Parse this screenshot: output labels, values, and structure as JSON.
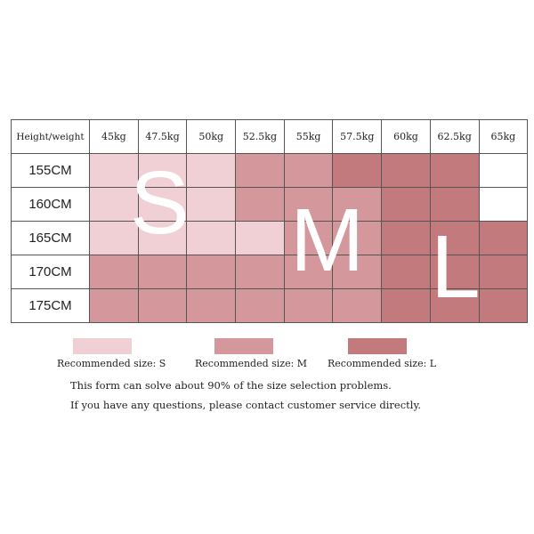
{
  "chart_data": {
    "type": "table",
    "corner_label": "Height/weight",
    "columns": [
      "45kg",
      "47.5kg",
      "50kg",
      "52.5kg",
      "55kg",
      "57.5kg",
      "60kg",
      "62.5kg",
      "65kg"
    ],
    "rows": [
      "155CM",
      "160CM",
      "165CM",
      "170CM",
      "175CM"
    ],
    "cells": [
      [
        "S",
        "S",
        "S",
        "M",
        "M",
        "L",
        "L",
        "L",
        ""
      ],
      [
        "S",
        "S",
        "S",
        "M",
        "M",
        "M",
        "L",
        "L",
        ""
      ],
      [
        "S",
        "S",
        "S",
        "S",
        "M",
        "M",
        "L",
        "L",
        "L"
      ],
      [
        "M",
        "M",
        "M",
        "M",
        "M",
        "M",
        "L",
        "L",
        "L"
      ],
      [
        "M",
        "M",
        "M",
        "M",
        "M",
        "M",
        "L",
        "L",
        "L"
      ]
    ],
    "size_letters": [
      "S",
      "M",
      "L"
    ]
  },
  "colors": {
    "S": "#f0d0d4",
    "M": "#d4979b",
    "L": "#c27a7d",
    "none": "#ffffff"
  },
  "legend": [
    {
      "size": "S",
      "label": "Recommended size: S"
    },
    {
      "size": "M",
      "label": "Recommended size: M"
    },
    {
      "size": "L",
      "label": "Recommended size: L"
    }
  ],
  "notes": [
    "This form can solve about 90% of the size selection problems.",
    "If you have any questions, please contact customer service directly."
  ]
}
